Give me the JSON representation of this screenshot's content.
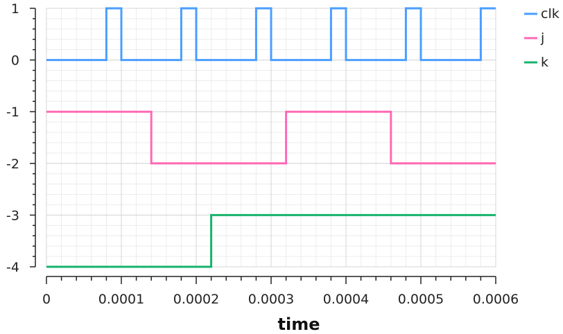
{
  "chart_data": {
    "type": "line",
    "title": "",
    "xlabel": "time",
    "ylabel": "",
    "xlim": [
      0,
      0.0006
    ],
    "ylim": [
      -4,
      1
    ],
    "grid": true,
    "legend_position": "top-right",
    "x_ticks": [
      0,
      0.0001,
      0.0002,
      0.0003,
      0.0004,
      0.0005,
      0.0006
    ],
    "x_tick_labels": [
      "0",
      "0.0001",
      "0.0002",
      "0.0003",
      "0.0004",
      "0.0005",
      "0.0006"
    ],
    "y_ticks": [
      1,
      0,
      -1,
      -2,
      -3,
      -4
    ],
    "y_tick_labels": [
      "1",
      "0",
      "-1",
      "-2",
      "-3",
      "-4"
    ],
    "series": [
      {
        "name": "clk",
        "color": "#4a9eff",
        "x": [
          0,
          8e-05,
          8e-05,
          0.0001,
          0.0001,
          0.00018,
          0.00018,
          0.0002,
          0.0002,
          0.00028,
          0.00028,
          0.0003,
          0.0003,
          0.00038,
          0.00038,
          0.0004,
          0.0004,
          0.00048,
          0.00048,
          0.0005,
          0.0005,
          0.00058,
          0.00058,
          0.0006
        ],
        "y": [
          0,
          0,
          1,
          1,
          0,
          0,
          1,
          1,
          0,
          0,
          1,
          1,
          0,
          0,
          1,
          1,
          0,
          0,
          1,
          1,
          0,
          0,
          1,
          1
        ]
      },
      {
        "name": "j",
        "color": "#ff69b4",
        "x": [
          0,
          0.00014,
          0.00014,
          0.00032,
          0.00032,
          0.00046,
          0.00046,
          0.0006
        ],
        "y": [
          -1,
          -1,
          -2,
          -2,
          -1,
          -1,
          -2,
          -2
        ]
      },
      {
        "name": "k",
        "color": "#16b36b",
        "x": [
          0,
          0.00022,
          0.00022,
          0.0006
        ],
        "y": [
          -4,
          -4,
          -3,
          -3
        ]
      }
    ]
  }
}
